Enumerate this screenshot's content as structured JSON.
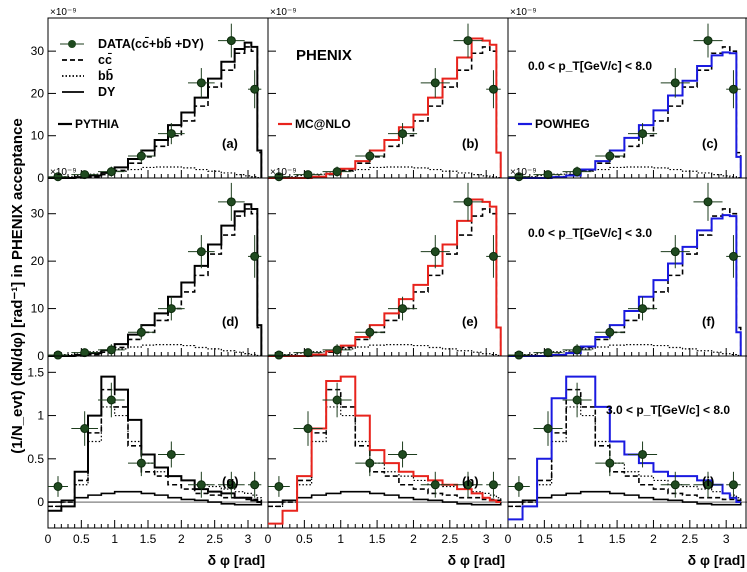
{
  "figure": {
    "ylabel": "(1/N_evt) (dN/dφ) [rad⁻¹] in PHENIX acceptance",
    "xlabel": "δ φ [rad]",
    "experiment_label": "PHENIX",
    "row_exponent": "×10⁻⁹",
    "legend": [
      {
        "label": "DATA(cc̄+bb̄ +DY)",
        "style": "data"
      },
      {
        "label": "cc̄",
        "style": "dashed"
      },
      {
        "label": "bb̄",
        "style": "dotted"
      },
      {
        "label": "DY",
        "style": "solid"
      }
    ],
    "generators": [
      {
        "name": "PYTHIA",
        "color": "#000000"
      },
      {
        "name": "MC@NLO",
        "color": "#e8231c"
      },
      {
        "name": "POWHEG",
        "color": "#1a1ae0"
      }
    ],
    "pt_ranges": [
      "0.0 < p_T[GeV/c] < 8.0",
      "0.0 < p_T[GeV/c] < 3.0",
      "3.0 < p_T[GeV/c] < 8.0"
    ],
    "panel_tags": [
      "(a)",
      "(b)",
      "(c)",
      "(d)",
      "(e)",
      "(f)",
      "(g)",
      "(h)",
      "(i)"
    ],
    "x_ticks": [
      "0",
      "0.5",
      "1",
      "1.5",
      "2",
      "2.5",
      "3"
    ],
    "y_ticks_rows": [
      [
        "0",
        "10",
        "20",
        "30"
      ],
      [
        "0",
        "10",
        "20",
        "30"
      ],
      [
        "0",
        "0.5",
        "1",
        "1.5"
      ]
    ]
  },
  "chart_data": [
    {
      "row": 0,
      "title": "0.0 < pT[GeV/c] < 8.0",
      "type": "line",
      "xlim": [
        0,
        3.3
      ],
      "ylim": [
        0,
        35
      ],
      "scale": "1e-9",
      "bin_edges": [
        0,
        0.2,
        0.4,
        0.6,
        0.8,
        1.0,
        1.2,
        1.4,
        1.6,
        1.8,
        2.0,
        2.2,
        2.4,
        2.6,
        2.8,
        2.95,
        3.05,
        3.14,
        3.2
      ],
      "data_points": {
        "x": [
          0.15,
          0.55,
          0.95,
          1.4,
          1.85,
          2.3,
          2.75,
          3.1
        ],
        "y": [
          0.3,
          0.8,
          1.5,
          5.2,
          10.5,
          22.5,
          32.5,
          21.0
        ],
        "xerr": [
          0.15,
          0.2,
          0.2,
          0.2,
          0.2,
          0.2,
          0.2,
          0.1
        ],
        "yerr": [
          0.5,
          0.8,
          1.2,
          1.5,
          2.5,
          3.5,
          4.0,
          4.5
        ]
      },
      "series": [
        {
          "name": "cc̄",
          "style": "dashed",
          "values": [
            0,
            0,
            0,
            0.3,
            0.8,
            1.8,
            3.5,
            5.0,
            7.5,
            10.0,
            13.5,
            17.0,
            21.5,
            25.5,
            29.5,
            31.0,
            30.0,
            6.0
          ]
        },
        {
          "name": "bb̄",
          "style": "dotted",
          "values": [
            0,
            0.3,
            0.6,
            0.9,
            1.2,
            1.6,
            2.0,
            2.5,
            2.6,
            2.6,
            2.4,
            2.0,
            1.6,
            1.2,
            0.8,
            0.5,
            0.3,
            0.1
          ]
        },
        {
          "name": "DY",
          "style": "solid",
          "values": [
            0,
            0,
            0,
            0,
            0,
            0,
            0,
            0,
            0,
            0,
            0,
            0,
            0,
            0,
            0,
            0,
            0,
            0
          ]
        },
        {
          "name": "PYTHIA",
          "style": "total",
          "values": [
            0,
            0,
            0.2,
            0.6,
            1.2,
            2.5,
            4.5,
            6.5,
            9.0,
            12.5,
            15.5,
            19.0,
            23.5,
            27.5,
            30.5,
            32.0,
            31.0,
            6.5
          ]
        },
        {
          "name": "MC@NLO",
          "style": "total",
          "values": [
            0,
            0,
            0,
            0.3,
            1.0,
            2.2,
            4.0,
            6.5,
            9.0,
            12.0,
            15.0,
            19.0,
            23.5,
            28.5,
            33.0,
            32.5,
            31.5,
            6.0
          ]
        },
        {
          "name": "POWHEG",
          "style": "total",
          "values": [
            0,
            0,
            0,
            0.2,
            0.6,
            2.0,
            4.0,
            6.5,
            9.5,
            12.5,
            16.0,
            19.5,
            23.0,
            26.5,
            29.0,
            29.7,
            29.5,
            5.0
          ]
        }
      ]
    },
    {
      "row": 1,
      "title": "0.0 < pT[GeV/c] < 3.0",
      "type": "line",
      "xlim": [
        0,
        3.3
      ],
      "ylim": [
        0,
        35
      ],
      "scale": "1e-9",
      "bin_edges": [
        0,
        0.2,
        0.4,
        0.6,
        0.8,
        1.0,
        1.2,
        1.4,
        1.6,
        1.8,
        2.0,
        2.2,
        2.4,
        2.6,
        2.8,
        2.95,
        3.05,
        3.14,
        3.2
      ],
      "data_points": {
        "x": [
          0.15,
          0.55,
          0.95,
          1.4,
          1.85,
          2.3,
          2.75,
          3.1
        ],
        "y": [
          0.2,
          0.7,
          1.3,
          5.0,
          10.0,
          22.0,
          32.5,
          21.0
        ],
        "xerr": [
          0.15,
          0.2,
          0.2,
          0.2,
          0.2,
          0.2,
          0.2,
          0.1
        ],
        "yerr": [
          0.5,
          0.8,
          1.2,
          1.5,
          2.5,
          3.5,
          4.0,
          4.5
        ]
      },
      "series": [
        {
          "name": "cc̄",
          "style": "dashed",
          "values": [
            0,
            0,
            0,
            0.3,
            0.8,
            1.8,
            3.5,
            5.0,
            7.5,
            10.0,
            13.5,
            17.0,
            21.5,
            25.5,
            29.5,
            31.0,
            30.0,
            6.0
          ]
        },
        {
          "name": "bb̄",
          "style": "dotted",
          "values": [
            0,
            0.3,
            0.6,
            0.9,
            1.2,
            1.5,
            1.9,
            2.3,
            2.4,
            2.4,
            2.2,
            1.8,
            1.5,
            1.1,
            0.8,
            0.5,
            0.3,
            0.1
          ]
        },
        {
          "name": "DY",
          "style": "solid",
          "values": [
            0,
            0,
            0,
            0,
            0,
            0,
            0,
            0,
            0,
            0,
            0,
            0,
            0,
            0,
            0,
            0,
            0,
            0
          ]
        },
        {
          "name": "PYTHIA",
          "style": "total",
          "values": [
            0,
            0,
            0.2,
            0.6,
            1.2,
            2.5,
            4.5,
            6.5,
            9.0,
            12.5,
            15.5,
            19.0,
            23.5,
            27.5,
            30.5,
            32.0,
            31.0,
            6.5
          ]
        },
        {
          "name": "MC@NLO",
          "style": "total",
          "values": [
            0,
            0,
            0,
            0.3,
            1.0,
            2.2,
            4.0,
            6.5,
            9.0,
            12.0,
            15.0,
            19.0,
            23.5,
            28.5,
            33.0,
            32.5,
            31.5,
            6.0
          ]
        },
        {
          "name": "POWHEG",
          "style": "total",
          "values": [
            0,
            0,
            0,
            0.2,
            0.6,
            2.0,
            4.0,
            6.5,
            9.5,
            12.5,
            16.0,
            19.5,
            23.0,
            26.5,
            29.0,
            29.7,
            29.5,
            5.0
          ]
        }
      ]
    },
    {
      "row": 2,
      "title": "3.0 < pT[GeV/c] < 8.0",
      "type": "line",
      "xlim": [
        0,
        3.3
      ],
      "ylim": [
        -0.3,
        1.55
      ],
      "scale": "1e-9",
      "bin_edges": [
        0,
        0.2,
        0.4,
        0.6,
        0.8,
        1.0,
        1.2,
        1.4,
        1.6,
        1.8,
        2.0,
        2.2,
        2.4,
        2.6,
        2.8,
        2.95,
        3.05,
        3.14,
        3.2
      ],
      "data_points": {
        "x": [
          0.15,
          0.55,
          0.95,
          1.4,
          1.85,
          2.3,
          2.75,
          3.1
        ],
        "y": [
          0.18,
          0.85,
          1.18,
          0.45,
          0.55,
          0.2,
          0.2,
          0.2
        ],
        "xerr": [
          0.15,
          0.2,
          0.2,
          0.2,
          0.2,
          0.2,
          0.2,
          0.1
        ],
        "yerr": [
          0.12,
          0.2,
          0.2,
          0.15,
          0.15,
          0.15,
          0.15,
          0.15
        ]
      },
      "series": [
        {
          "name": "cc̄",
          "style": "dashed",
          "values": [
            -0.05,
            0.0,
            0.25,
            0.8,
            1.3,
            1.1,
            0.65,
            0.35,
            0.3,
            0.2,
            0.15,
            0.1,
            0.08,
            0.05,
            0.05,
            0.03,
            0.03,
            0.02
          ]
        },
        {
          "name": "bb̄",
          "style": "dotted",
          "values": [
            -0.05,
            0.0,
            0.2,
            0.7,
            1.1,
            1.0,
            0.7,
            0.45,
            0.35,
            0.3,
            0.25,
            0.2,
            0.18,
            0.15,
            0.12,
            0.1,
            0.08,
            0.05
          ]
        },
        {
          "name": "DY",
          "style": "solid",
          "values": [
            0.0,
            0.02,
            0.05,
            0.08,
            0.1,
            0.12,
            0.12,
            0.1,
            0.08,
            0.05,
            0.03,
            0.02,
            0.0,
            -0.02,
            -0.03,
            -0.03,
            -0.03,
            -0.03
          ]
        },
        {
          "name": "PYTHIA",
          "style": "total",
          "values": [
            -0.1,
            -0.05,
            0.35,
            1.0,
            1.45,
            1.3,
            0.95,
            0.55,
            0.4,
            0.3,
            0.25,
            0.15,
            0.12,
            0.1,
            0.05,
            0.05,
            0.02,
            0.0
          ]
        },
        {
          "name": "MC@NLO",
          "style": "total",
          "values": [
            -0.25,
            -0.1,
            0.3,
            0.85,
            1.4,
            1.45,
            1.0,
            0.6,
            0.45,
            0.35,
            0.3,
            0.25,
            0.2,
            0.15,
            0.1,
            0.05,
            0.02,
            0.0
          ]
        },
        {
          "name": "POWHEG",
          "style": "total",
          "values": [
            -0.2,
            -0.05,
            0.5,
            1.2,
            1.45,
            1.45,
            1.1,
            0.7,
            0.55,
            0.45,
            0.35,
            0.3,
            0.3,
            0.25,
            0.2,
            0.1,
            0.05,
            0.0
          ]
        }
      ]
    }
  ]
}
